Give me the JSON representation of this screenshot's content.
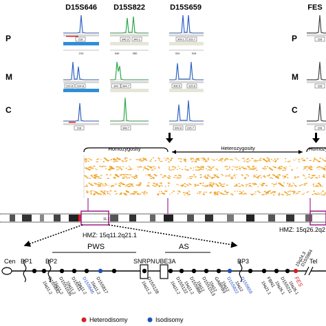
{
  "markers_top": [
    "D15S646",
    "D15S822",
    "D15S659",
    "FES"
  ],
  "rows": [
    "P",
    "M",
    "C",
    "P",
    "M",
    "C"
  ],
  "peak_tags": {
    "p1": [
      "218"
    ],
    "p2": [
      "346.3",
      "349.1"
    ],
    "p3": [
      "309.1",
      "315.7"
    ],
    "m1": [
      "220.8",
      "224.8"
    ],
    "m2": [
      "340",
      "344.7"
    ],
    "m3": [
      "306.5",
      "315.8"
    ],
    "c1": [
      "218"
    ],
    "c2": [
      "348.7"
    ],
    "c3": [
      "309.8",
      "315.7"
    ],
    "fp": [
      "228"
    ],
    "fm": [
      "228"
    ],
    "fc": [
      "228"
    ]
  },
  "axis_ticks": {
    "g1": [
      "210",
      "220"
    ],
    "g2": [
      "340",
      "350",
      "350"
    ],
    "g3": [
      "310",
      "315"
    ]
  },
  "regions": {
    "homozygosity": "Homozygosity",
    "heterozygosity": "Heterozygosity",
    "homozygosity_right": "Homozy"
  },
  "chromosome_band_label": "11.2",
  "hmz_left": "HMZ: 15q11.2q21.1",
  "hmz_right": "HMZ: 15q26.2q2",
  "map_labels": {
    "pws": "PWS",
    "as": "AS",
    "cen": "Cen",
    "tel": "Tel",
    "bp1": "BP1",
    "bp2": "BP2",
    "bp3": "BP3",
    "snrpn": "SNRPN",
    "ube3a": "UBE3A"
  },
  "loci": [
    {
      "name": "D15S642",
      "band": "15q11.2",
      "color": "#000000"
    },
    {
      "name": "D15S1035",
      "band": "15q11.2",
      "color": "#000000"
    },
    {
      "name": "D15S11",
      "band": "15q11.2",
      "color": "#000000"
    },
    {
      "name": "D15S646",
      "band": "15q11.2",
      "color": "#1f4fbf"
    },
    {
      "name": "D15S817",
      "band": "15q11.2",
      "color": "#000000"
    },
    {
      "name": "D15S128",
      "band": "15q11.2",
      "color": "#000000"
    },
    {
      "name": "D15S122",
      "band": "15q11.2",
      "color": "#000000"
    },
    {
      "name": "D15S986",
      "band": "15q11.2",
      "color": "#000000"
    },
    {
      "name": "D15S1513",
      "band": "15q12",
      "color": "#000000"
    },
    {
      "name": "GABRB3",
      "band": "15q12",
      "color": "#000000"
    },
    {
      "name": "D15S822",
      "band": "15q12",
      "color": "#1f4fbf"
    },
    {
      "name": "D15S659",
      "band": "15q12",
      "color": "#1f4fbf"
    },
    {
      "name": "FBN1",
      "band": "15q21.1",
      "color": "#000000"
    },
    {
      "name": "D15S211",
      "band": "15q26.1",
      "color": "#000000"
    },
    {
      "name": "FES",
      "band": "15q26.1",
      "color": "#d62020"
    }
  ],
  "tel_labels": [
    "15q24.3",
    "D15S984"
  ],
  "legend": [
    {
      "label": "Heterodisomy",
      "color": "#d62020"
    },
    {
      "label": "Isodisomy",
      "color": "#1f4fbf"
    }
  ],
  "colors": {
    "blue_trace": "#2f63c4",
    "green_trace": "#2ea84a",
    "orange_signal": "#f0a020",
    "magenta_box": "#a0288c"
  }
}
